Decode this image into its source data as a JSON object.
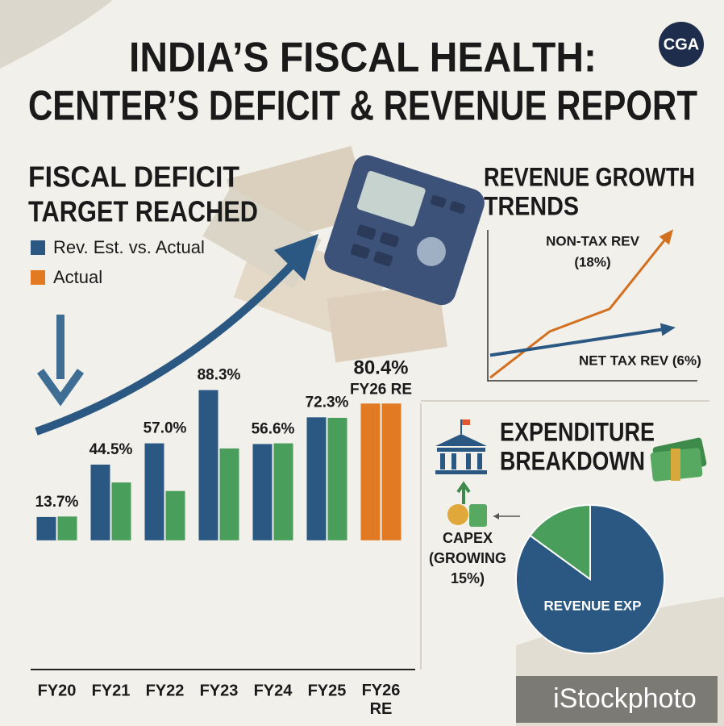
{
  "header": {
    "title_lines": [
      "INDIA’S FISCAL HEALTH:",
      "CENTER’S DEFICIT & REVENUE REPORT"
    ],
    "logo": "CGA"
  },
  "chart_data": [
    {
      "type": "bar",
      "title_lines": [
        "FISCAL DEFICIT",
        "TARGET REACHED"
      ],
      "categories": [
        "FY20",
        "FY21",
        "FY22",
        "FY23",
        "FY24",
        "FY25",
        "FY26 RE"
      ],
      "series": [
        {
          "name": "Rev. Est. vs. Actual",
          "color": "#2b5883",
          "values": [
            13.7,
            44.5,
            57.0,
            88.3,
            56.6,
            72.3,
            null
          ],
          "value_labels": [
            "13.7%",
            "44.5%",
            "57.0%",
            "88.3%",
            "56.6%",
            "72.3%",
            null
          ]
        },
        {
          "color": "#4a9e5c",
          "values": [
            14,
            34,
            29,
            54,
            57,
            72,
            null
          ]
        },
        {
          "name": "Actual",
          "color": "#e27a24",
          "values": [
            null,
            null,
            null,
            null,
            null,
            null,
            80.4
          ],
          "value_labels": [
            null,
            null,
            null,
            null,
            null,
            null,
            "80.4%"
          ]
        }
      ],
      "annotation": "FY26 RE",
      "ylim": [
        -75,
        90
      ]
    },
    {
      "type": "line",
      "title_lines": [
        "REVENUE GROWTH",
        "TRENDS"
      ],
      "x": [
        0,
        1,
        2,
        3
      ],
      "xlim": [
        0,
        3
      ],
      "ylim": [
        0,
        10
      ],
      "series": [
        {
          "name": "NON-TAX REV",
          "annotation": "(18%)",
          "color": "#d2701f",
          "values": [
            0.1,
            3.2,
            4.7,
            9.7
          ]
        },
        {
          "name": "NET TAX REV (6%)",
          "color": "#2b5883",
          "values": [
            1.6,
            2.2,
            2.8,
            3.4
          ]
        }
      ]
    },
    {
      "type": "pie",
      "title_lines": [
        "EXPENDITURE",
        "BREAKDOWN"
      ],
      "labels": [
        "REVENUE EXP",
        "CAPEX (GROWING 15%)"
      ],
      "label_lines": [
        [
          "REVENUE EXP"
        ],
        [
          "CAPEX",
          "(GROWING",
          "15%)"
        ]
      ],
      "values": [
        85,
        15
      ],
      "colors": [
        "#2b5883",
        "#4a9e5c"
      ]
    }
  ],
  "watermark": "iStockphoto"
}
